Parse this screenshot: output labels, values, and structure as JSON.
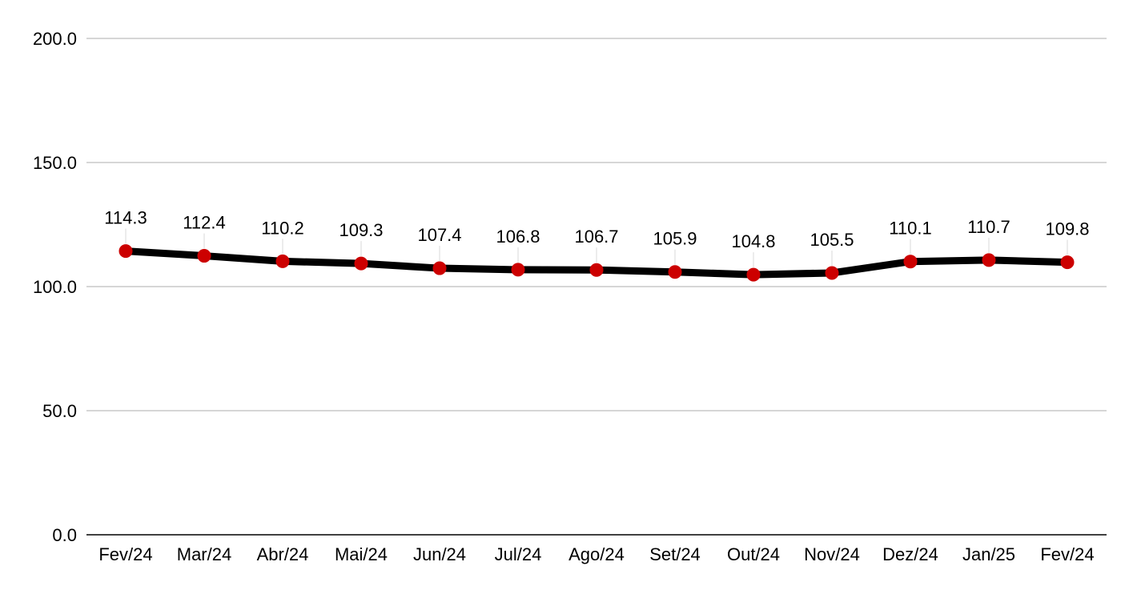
{
  "chart_data": {
    "type": "line",
    "categories": [
      "Fev/24",
      "Mar/24",
      "Abr/24",
      "Mai/24",
      "Jun/24",
      "Jul/24",
      "Ago/24",
      "Set/24",
      "Out/24",
      "Nov/24",
      "Dez/24",
      "Jan/25",
      "Fev/24"
    ],
    "series": [
      {
        "values": [
          114.3,
          112.4,
          110.2,
          109.3,
          107.4,
          106.8,
          106.7,
          105.9,
          104.8,
          105.5,
          110.1,
          110.7,
          109.8
        ],
        "labels": [
          "114.3",
          "112.4",
          "110.2",
          "109.3",
          "107.4",
          "106.8",
          "106.7",
          "105.9",
          "104.8",
          "105.5",
          "110.1",
          "110.7",
          "109.8"
        ],
        "line_color": "#000000",
        "marker_color": "#cc0000"
      }
    ],
    "ylim": [
      0,
      200
    ],
    "yticks": [
      0,
      50,
      100,
      150,
      200
    ],
    "ytick_labels": [
      "0.0",
      "50.0",
      "100.0",
      "150.0",
      "200.0"
    ],
    "grid": true,
    "data_labels": true
  }
}
